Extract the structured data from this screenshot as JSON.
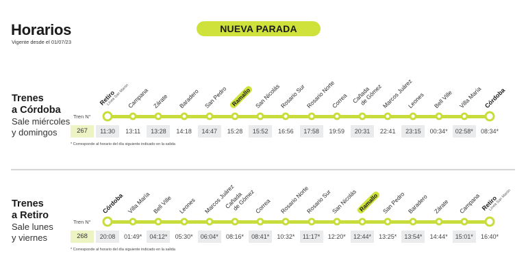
{
  "header": {
    "title": "Horarios",
    "subtitle": "Vigente desde el 01/07/23",
    "badge": "NUEVA PARADA"
  },
  "colors": {
    "accent": "#c8dc3c",
    "badge": "#cfe23b",
    "train_number_bg": "#eef3c4",
    "shaded_cell": "#e9ebec"
  },
  "to_cordoba": {
    "title_line1": "Trenes",
    "title_line2": "a Córdoba",
    "sub_line1": "Sale miércoles",
    "sub_line2": "y domingos",
    "train_label": "Tren N°",
    "train_number": "267",
    "note": "* Corresponde al horario del día siguiente indicado en la salida",
    "stops": [
      {
        "name": "Retiro",
        "sub": "Línea San Martín",
        "time": "11:30",
        "terminal": true,
        "shaded": true
      },
      {
        "name": "Campana",
        "time": "13:11"
      },
      {
        "name": "Zárate",
        "time": "13:28",
        "shaded": true
      },
      {
        "name": "Baradero",
        "time": "14:18"
      },
      {
        "name": "San Pedro",
        "time": "14:47",
        "shaded": true
      },
      {
        "name": "Ramallo",
        "time": "15:28",
        "highlight": true
      },
      {
        "name": "San Nicolás",
        "time": "15:52",
        "shaded": true
      },
      {
        "name": "Rosario Sur",
        "time": "16:56"
      },
      {
        "name": "Rosario Norte",
        "time": "17:58",
        "shaded": true
      },
      {
        "name": "Correa",
        "time": "19:59"
      },
      {
        "name": "Cañada",
        "name2": "de Gómez",
        "time": "20:31",
        "shaded": true
      },
      {
        "name": "Marcos Juárez",
        "time": "22:41"
      },
      {
        "name": "Leones",
        "time": "23:15",
        "shaded": true
      },
      {
        "name": "Bell Ville",
        "time": "00:34*"
      },
      {
        "name": "Villa María",
        "time": "02:58*",
        "shaded": true
      },
      {
        "name": "Córdoba",
        "time": "08:34*",
        "terminal": true
      }
    ]
  },
  "to_retiro": {
    "title_line1": "Trenes",
    "title_line2": "a Retiro",
    "sub_line1": "Sale lunes",
    "sub_line2": "y viernes",
    "train_label": "Tren N°",
    "train_number": "268",
    "note": "* Corresponde al horario del día siguiente indicado en la salida",
    "stops": [
      {
        "name": "Córdoba",
        "time": "20:08",
        "terminal": true,
        "shaded": true
      },
      {
        "name": "Villa María",
        "time": "01:49*"
      },
      {
        "name": "Bell Ville",
        "time": "04:12*",
        "shaded": true
      },
      {
        "name": "Leones",
        "time": "05:30*"
      },
      {
        "name": "Marcos Juárez",
        "time": "06:04*",
        "shaded": true
      },
      {
        "name": "Cañada",
        "name2": "de Gómez",
        "time": "08:16*"
      },
      {
        "name": "Correa",
        "time": "08:41*",
        "shaded": true
      },
      {
        "name": "Rosario Norte",
        "time": "10:32*"
      },
      {
        "name": "Rosario Sur",
        "time": "11:17*",
        "shaded": true
      },
      {
        "name": "San Nicolás",
        "time": "12:20*"
      },
      {
        "name": "Ramallo",
        "time": "12:44*",
        "highlight": true,
        "shaded": true
      },
      {
        "name": "San Pedro",
        "time": "13:25*"
      },
      {
        "name": "Baradero",
        "time": "13:54*",
        "shaded": true
      },
      {
        "name": "Zárate",
        "time": "14:44*"
      },
      {
        "name": "Campana",
        "time": "15:01*",
        "shaded": true
      },
      {
        "name": "Retiro",
        "sub": "Línea San Martín",
        "time": "16:40*",
        "terminal": true
      }
    ]
  }
}
